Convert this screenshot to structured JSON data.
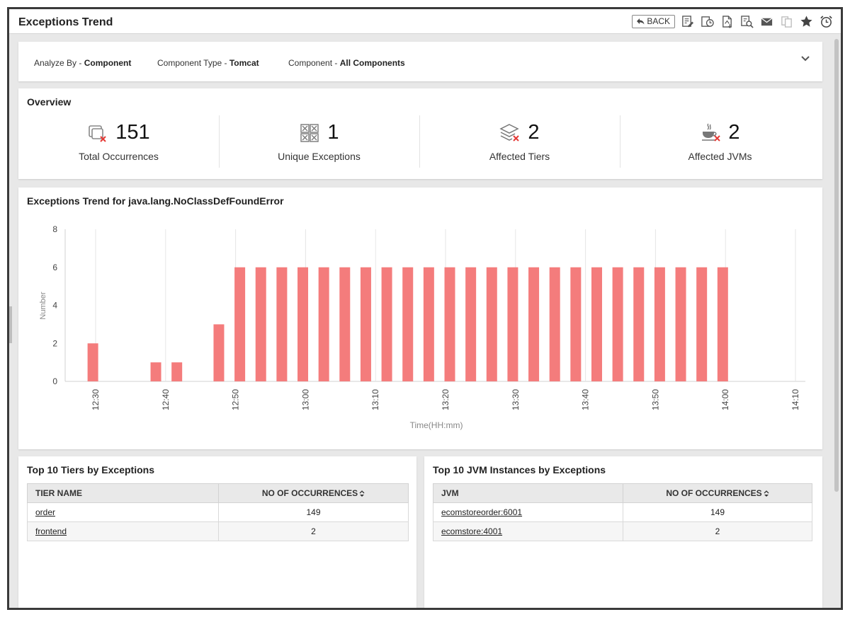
{
  "window": {
    "title": "Exceptions Trend"
  },
  "toolbar": {
    "back_label": "BACK",
    "icons": [
      "edit-report-icon",
      "schedule-report-icon",
      "export-pdf-icon",
      "search-report-icon",
      "email-icon",
      "copy-icon",
      "favorite-star-icon",
      "alarm-clock-icon"
    ]
  },
  "filters": [
    {
      "key": "Analyze By - ",
      "value": "Component"
    },
    {
      "key": "Component Type - ",
      "value": "Tomcat"
    },
    {
      "key": "Component - ",
      "value": "All Components"
    }
  ],
  "overview": {
    "title": "Overview",
    "stats": [
      {
        "value": "151",
        "label": "Total Occurrences",
        "icon": "occurrences-icon"
      },
      {
        "value": "1",
        "label": "Unique Exceptions",
        "icon": "unique-exceptions-icon"
      },
      {
        "value": "2",
        "label": "Affected Tiers",
        "icon": "tiers-icon"
      },
      {
        "value": "2",
        "label": "Affected JVMs",
        "icon": "jvm-icon"
      }
    ]
  },
  "trend": {
    "title": "Exceptions Trend for java.lang.NoClassDefFoundError"
  },
  "chart_data": {
    "type": "bar",
    "title": "Exceptions Trend for java.lang.NoClassDefFoundError",
    "xlabel": "Time(HH:mm)",
    "ylabel": "Number",
    "ylim": [
      0,
      8
    ],
    "yticks": [
      0,
      2,
      4,
      6,
      8
    ],
    "xticks": [
      "12:30",
      "12:40",
      "12:50",
      "13:00",
      "13:10",
      "13:20",
      "13:30",
      "13:40",
      "13:50",
      "14:00",
      "14:10"
    ],
    "grid": "vertical",
    "bar_color": "#f47c7c",
    "x_start": "12:30",
    "bars": [
      {
        "time": "12:29",
        "value": 2
      },
      {
        "time": "12:38",
        "value": 1
      },
      {
        "time": "12:41",
        "value": 1
      },
      {
        "time": "12:47",
        "value": 3
      },
      {
        "time": "12:50",
        "value": 6
      },
      {
        "time": "12:53",
        "value": 6
      },
      {
        "time": "12:56",
        "value": 6
      },
      {
        "time": "12:59",
        "value": 6
      },
      {
        "time": "13:02",
        "value": 6
      },
      {
        "time": "13:05",
        "value": 6
      },
      {
        "time": "13:08",
        "value": 6
      },
      {
        "time": "13:11",
        "value": 6
      },
      {
        "time": "13:14",
        "value": 6
      },
      {
        "time": "13:17",
        "value": 6
      },
      {
        "time": "13:20",
        "value": 6
      },
      {
        "time": "13:23",
        "value": 6
      },
      {
        "time": "13:26",
        "value": 6
      },
      {
        "time": "13:29",
        "value": 6
      },
      {
        "time": "13:32",
        "value": 6
      },
      {
        "time": "13:35",
        "value": 6
      },
      {
        "time": "13:38",
        "value": 6
      },
      {
        "time": "13:41",
        "value": 6
      },
      {
        "time": "13:44",
        "value": 6
      },
      {
        "time": "13:47",
        "value": 6
      },
      {
        "time": "13:50",
        "value": 6
      },
      {
        "time": "13:53",
        "value": 6
      },
      {
        "time": "13:56",
        "value": 6
      },
      {
        "time": "13:59",
        "value": 6
      }
    ]
  },
  "tiers": {
    "title": "Top 10 Tiers by Exceptions",
    "columns": [
      "TIER NAME",
      "NO OF OCCURRENCES"
    ],
    "rows": [
      {
        "name": "order",
        "count": "149"
      },
      {
        "name": "frontend",
        "count": "2"
      }
    ]
  },
  "jvms": {
    "title": "Top 10 JVM Instances by Exceptions",
    "columns": [
      "JVM",
      "NO OF OCCURRENCES"
    ],
    "rows": [
      {
        "name": "ecomstoreorder:6001",
        "count": "149"
      },
      {
        "name": "ecomstore:4001",
        "count": "2"
      }
    ]
  }
}
